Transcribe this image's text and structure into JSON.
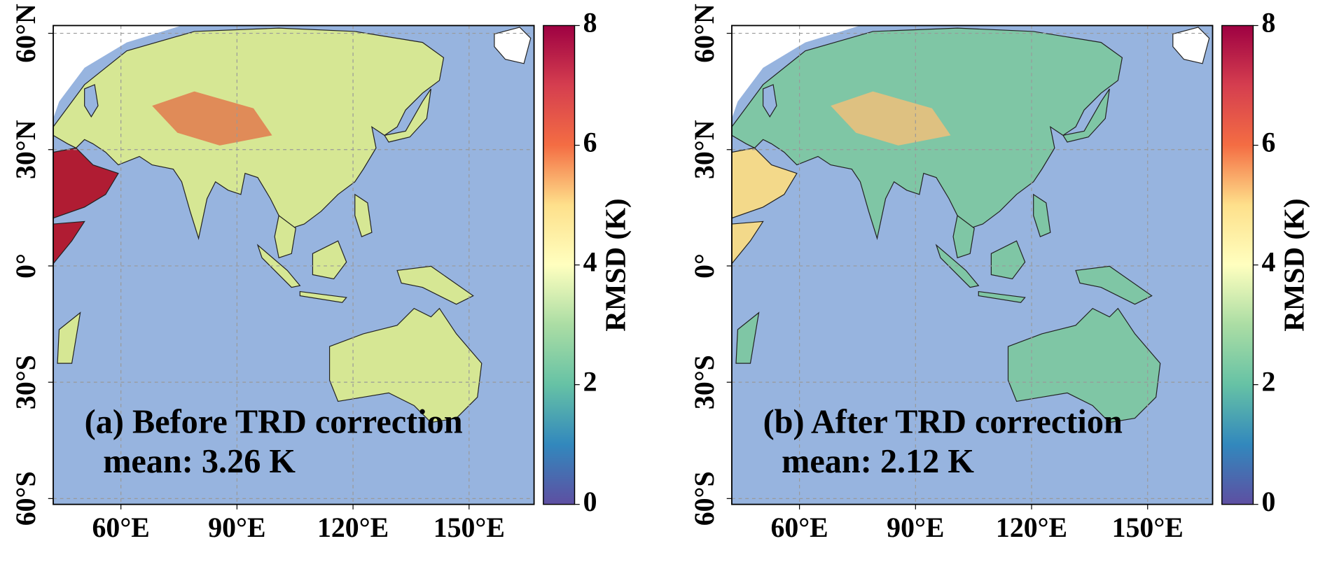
{
  "panels": [
    {
      "title": "(a) Before TRD correction",
      "mean_label": "mean: 3.26 K",
      "land_color": "#d6e794",
      "arid_color": "#b01c33",
      "highland_color": "#e27a4d",
      "lonlim": [
        42.5,
        166.8
      ],
      "latlim": [
        -61.5,
        62
      ],
      "lon_ticks": [
        {
          "value": 60,
          "label": "60°E"
        },
        {
          "value": 90,
          "label": "90°E"
        },
        {
          "value": 120,
          "label": "120°E"
        },
        {
          "value": 150,
          "label": "150°E"
        }
      ],
      "lat_ticks": [
        {
          "value": 60,
          "label": "60°N"
        },
        {
          "value": 30,
          "label": "30°N"
        },
        {
          "value": 0,
          "label": "0°"
        },
        {
          "value": -30,
          "label": "30°S"
        },
        {
          "value": -60,
          "label": "60°S"
        }
      ],
      "colorbar": {
        "label": "RMSD (K)",
        "clim": [
          0,
          8
        ],
        "ticks": [
          0,
          2,
          4,
          6,
          8
        ],
        "colors": [
          "#5e4fa2",
          "#3288bd",
          "#66c2a5",
          "#abdda4",
          "#ffffbf",
          "#fee08b",
          "#f46d43",
          "#d53e4f",
          "#9e0142"
        ]
      }
    },
    {
      "title": "(b) After TRD correction",
      "mean_label": "mean: 2.12 K",
      "land_color": "#7fc6a5",
      "arid_color": "#f3d98a",
      "highland_color": "#eec07a",
      "lonlim": [
        42.5,
        166.8
      ],
      "latlim": [
        -61.5,
        62
      ],
      "lon_ticks": [
        {
          "value": 60,
          "label": "60°E"
        },
        {
          "value": 90,
          "label": "90°E"
        },
        {
          "value": 120,
          "label": "120°E"
        },
        {
          "value": 150,
          "label": "150°E"
        }
      ],
      "lat_ticks": [
        {
          "value": 60,
          "label": "60°N"
        },
        {
          "value": 30,
          "label": "30°N"
        },
        {
          "value": 0,
          "label": "0°"
        },
        {
          "value": -30,
          "label": "30°S"
        },
        {
          "value": -60,
          "label": "60°S"
        }
      ],
      "colorbar": {
        "label": "RMSD (K)",
        "clim": [
          0,
          8
        ],
        "ticks": [
          0,
          2,
          4,
          6,
          8
        ],
        "colors": [
          "#5e4fa2",
          "#3288bd",
          "#66c2a5",
          "#abdda4",
          "#ffffbf",
          "#fee08b",
          "#f46d43",
          "#d53e4f",
          "#9e0142"
        ]
      }
    }
  ]
}
